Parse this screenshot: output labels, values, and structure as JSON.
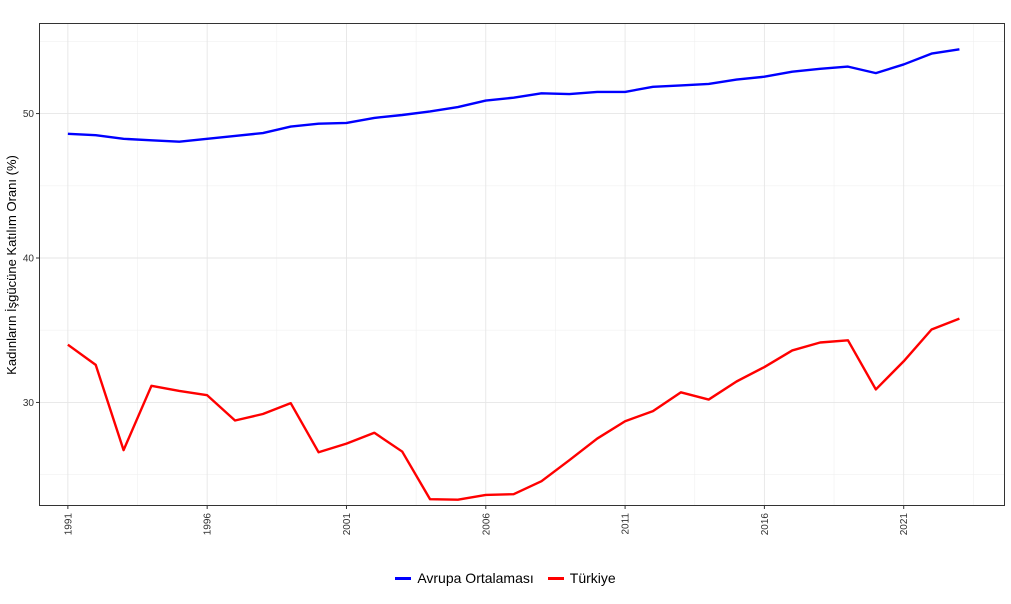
{
  "chart_data": {
    "type": "line",
    "title": "",
    "xlabel": "",
    "ylabel": "Kadınların İşgücüne Katılım Oranı (%)",
    "x": [
      1991,
      1992,
      1993,
      1994,
      1995,
      1996,
      1997,
      1998,
      1999,
      2000,
      2001,
      2002,
      2003,
      2004,
      2005,
      2006,
      2007,
      2008,
      2009,
      2010,
      2011,
      2012,
      2013,
      2014,
      2015,
      2016,
      2017,
      2018,
      2019,
      2020,
      2021,
      2022,
      2023
    ],
    "xticks": [
      1991,
      1996,
      2001,
      2006,
      2011,
      2016,
      2021
    ],
    "xtick_labels": [
      "1991",
      "1996",
      "2001",
      "2006",
      "2011",
      "2016",
      "2021"
    ],
    "yticks": [
      30,
      40,
      50
    ],
    "ytick_labels": [
      "30",
      "40",
      "50"
    ],
    "xlim": [
      1990,
      2024.6
    ],
    "ylim": [
      22.9,
      56.2
    ],
    "grid": true,
    "legend_position": "bottom",
    "series": [
      {
        "name": "Avrupa Ortalaması",
        "color": "#0000ff",
        "values": [
          48.6,
          48.5,
          48.25,
          48.15,
          48.05,
          48.25,
          48.45,
          48.65,
          49.1,
          49.3,
          49.35,
          49.7,
          49.9,
          50.15,
          50.45,
          50.9,
          51.1,
          51.4,
          51.35,
          51.5,
          51.5,
          51.85,
          51.95,
          52.05,
          52.35,
          52.55,
          52.9,
          53.1,
          53.25,
          52.8,
          53.4,
          54.15,
          54.45
        ]
      },
      {
        "name": "Türkiye",
        "color": "#ff0000",
        "values": [
          34.0,
          32.6,
          26.7,
          31.15,
          30.8,
          30.5,
          28.75,
          29.2,
          29.95,
          26.55,
          27.15,
          27.9,
          26.6,
          23.3,
          23.27,
          23.6,
          23.65,
          24.55,
          26.0,
          27.5,
          28.7,
          29.4,
          30.7,
          30.2,
          31.45,
          32.45,
          33.6,
          34.15,
          34.3,
          30.9,
          32.85,
          35.05,
          35.8
        ]
      }
    ]
  }
}
